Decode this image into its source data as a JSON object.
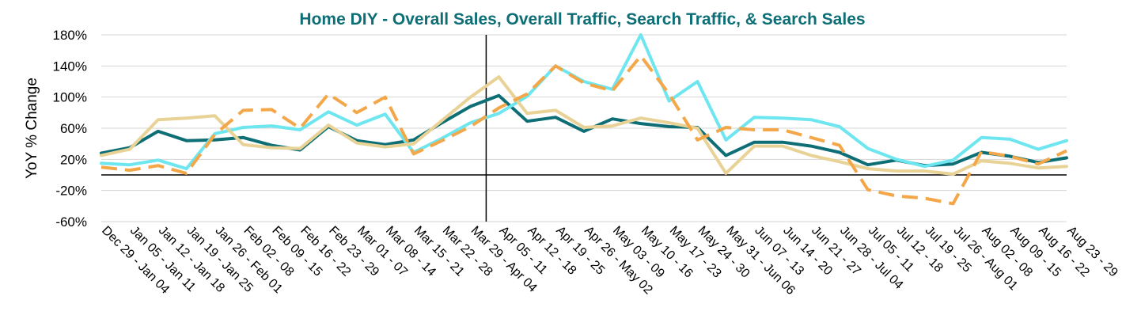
{
  "chart_data": {
    "type": "line",
    "title": "Home DIY - Overall Sales, Overall Traffic, Search Traffic, & Search Sales",
    "xlabel": "",
    "ylabel": "YoY % Change",
    "ylim": [
      -60,
      180
    ],
    "yticks": [
      "180%",
      "140%",
      "100%",
      "60%",
      "20%",
      "-20%",
      "-60%"
    ],
    "grid": true,
    "legend": "none",
    "categories": [
      "Dec 29 - Jan 04",
      "Jan 05 - Jan 11",
      "Jan 12 - Jan 18",
      "Jan 19 - Jan 25",
      "Jan 26 - Feb 01",
      "Feb 02 - 08",
      "Feb 09 - 15",
      "Feb 16 - 22",
      "Feb 23 - 29",
      "Mar 01 - 07",
      "Mar 08 - 14",
      "Mar 15 - 21",
      "Mar 22 - 28",
      "Mar 29 - Apr 04",
      "Apr 05 - 11",
      "Apr 12 - 18",
      "Apr 19 - 25",
      "Apr 26 - May 02",
      "May 03 - 09",
      "May 10 - 16",
      "May 17 - 23",
      "May 24 - 30",
      "May 31 - Jun 06",
      "Jun 07 - 13",
      "Jun 14 - 20",
      "Jun 21 - 27",
      "Jun 28 - Jul 04",
      "Jul 05 - 11",
      "Jul 12 - 18",
      "Jul 19 - 25",
      "Jul 26 - Aug 01",
      "Aug 02 - 08",
      "Aug 09 - 15",
      "Aug 16 - 22",
      "Aug 23 - 29"
    ],
    "marker_after_category": "Apr 05 - 11",
    "series": [
      {
        "color": "#0d6e75",
        "dash": "solid",
        "values": [
          28,
          35,
          56,
          44,
          45,
          48,
          38,
          32,
          62,
          44,
          39,
          45,
          67,
          88,
          102,
          69,
          74,
          56,
          72,
          66,
          62,
          61,
          25,
          42,
          42,
          37,
          29,
          13,
          19,
          12,
          14,
          29,
          24,
          16,
          22
        ]
      },
      {
        "color": "#6ee6ef",
        "dash": "solid",
        "values": [
          15,
          13,
          19,
          8,
          53,
          61,
          63,
          58,
          81,
          64,
          78,
          29,
          47,
          67,
          79,
          101,
          140,
          120,
          110,
          180,
          95,
          120,
          45,
          74,
          73,
          71,
          62,
          34,
          20,
          11,
          19,
          48,
          46,
          33,
          44
        ]
      },
      {
        "color": "#e8d296",
        "dash": "solid",
        "values": [
          25,
          33,
          71,
          73,
          76,
          39,
          35,
          34,
          64,
          41,
          36,
          40,
          70,
          100,
          126,
          79,
          83,
          61,
          63,
          73,
          67,
          60,
          2,
          37,
          37,
          25,
          17,
          8,
          5,
          5,
          1,
          18,
          15,
          9,
          11
        ]
      },
      {
        "color": "#f3a749",
        "dash": "dashed",
        "values": [
          10,
          6,
          12,
          2,
          52,
          83,
          84,
          60,
          104,
          80,
          100,
          27,
          44,
          62,
          86,
          104,
          140,
          118,
          108,
          153,
          104,
          45,
          61,
          58,
          58,
          48,
          38,
          -19,
          -27,
          -30,
          -37,
          30,
          24,
          14,
          31
        ]
      }
    ],
    "colors": {
      "title": "#0d6e75",
      "grid": "#d4d4d4",
      "axis": "#000000"
    }
  }
}
